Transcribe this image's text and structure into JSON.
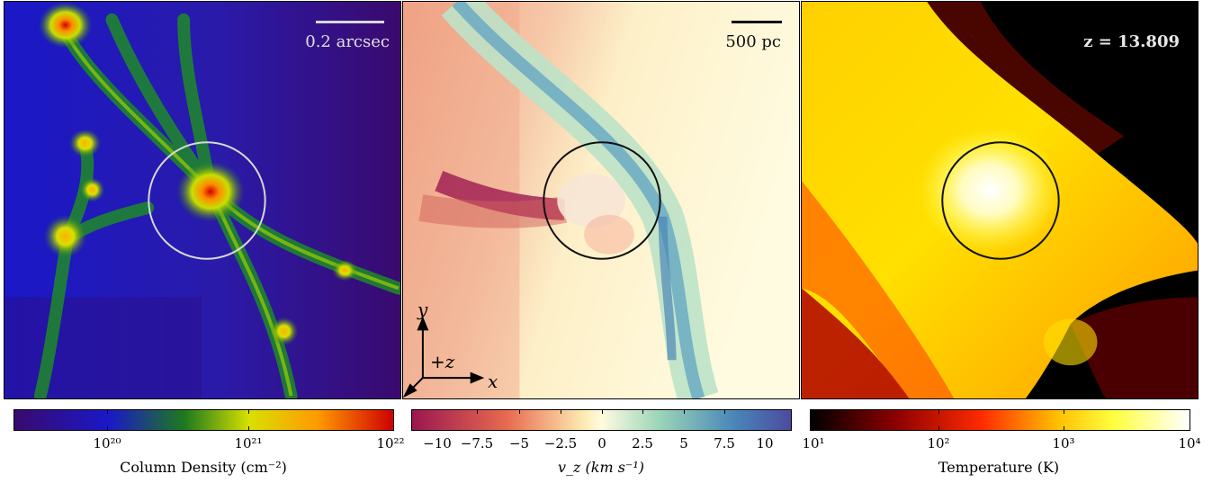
{
  "panels": {
    "left": {
      "scale_label": "0.2 arcsec"
    },
    "middle": {
      "scale_label": "500 pc",
      "axis_y": "y",
      "axis_x": "x",
      "axis_z": "+z"
    },
    "right": {
      "redshift_label": "z = 13.809"
    }
  },
  "colorbars": [
    {
      "label": "Column Density  (cm⁻²)",
      "ticks": [
        "10²⁰",
        "10²¹",
        "10²²"
      ]
    },
    {
      "label": "v_z  (km s⁻¹)",
      "ticks": [
        "−10",
        "−7.5",
        "−5",
        "−2.5",
        "0",
        "2.5",
        "5",
        "7.5",
        "10"
      ]
    },
    {
      "label": "Temperature  (K)",
      "ticks": [
        "10¹",
        "10²",
        "10³",
        "10⁴"
      ]
    }
  ],
  "colors": {
    "density_map": [
      "#3a0a6e",
      "#1a18c8",
      "#1e7a1e",
      "#d8e000",
      "#ff7a00",
      "#d00000"
    ],
    "velocity_map": [
      "#9b1750",
      "#e86a50",
      "#fde9b0",
      "#fffbe0",
      "#9dd6b8",
      "#4a86b8",
      "#4c4aa0"
    ],
    "temperature_map": [
      "#000000",
      "#8a0000",
      "#ff2a00",
      "#ffbf00",
      "#ffff40",
      "#ffffff"
    ]
  }
}
